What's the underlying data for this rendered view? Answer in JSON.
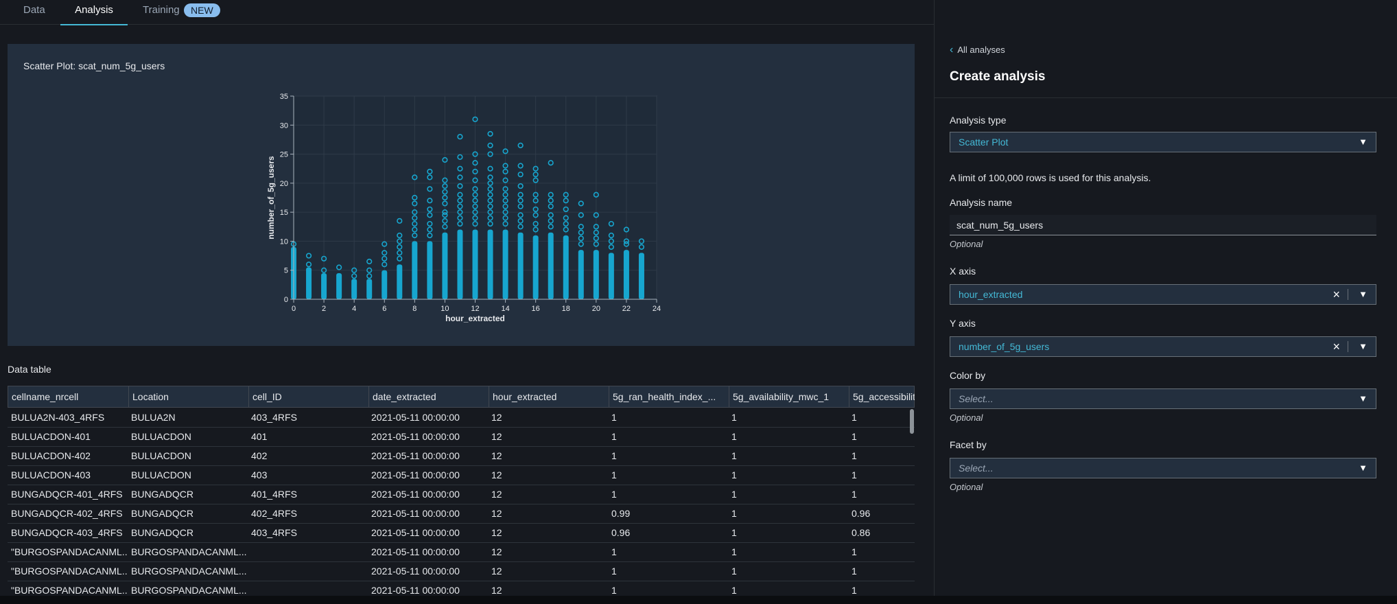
{
  "tabs": [
    {
      "label": "Data"
    },
    {
      "label": "Analysis"
    },
    {
      "label": "Training",
      "badge": "NEW"
    }
  ],
  "chart": {
    "title": "Scatter Plot: scat_num_5g_users"
  },
  "chart_data": {
    "type": "scatter",
    "xlabel": "hour_extracted",
    "ylabel": "number_of_5g_users",
    "xlim": [
      0,
      24
    ],
    "ylim": [
      0,
      35
    ],
    "xticks": [
      0,
      2,
      4,
      6,
      8,
      10,
      12,
      14,
      16,
      18,
      20,
      22,
      24
    ],
    "yticks": [
      0,
      5,
      10,
      15,
      20,
      25,
      30,
      35
    ],
    "grid": true,
    "color": "#17a6cf",
    "points_by_hour": [
      {
        "x": 0,
        "max": 9,
        "outliers": [
          8,
          9.5
        ]
      },
      {
        "x": 1,
        "max": 5.5,
        "outliers": [
          6,
          7.5
        ]
      },
      {
        "x": 2,
        "max": 4.5,
        "outliers": [
          5,
          7
        ]
      },
      {
        "x": 3,
        "max": 4.5,
        "outliers": [
          5.5
        ]
      },
      {
        "x": 4,
        "max": 3.5,
        "outliers": [
          4,
          5
        ]
      },
      {
        "x": 5,
        "max": 3.5,
        "outliers": [
          4,
          5,
          6.5
        ]
      },
      {
        "x": 6,
        "max": 5,
        "outliers": [
          6,
          7,
          8,
          9.5
        ]
      },
      {
        "x": 7,
        "max": 6,
        "outliers": [
          7,
          8,
          9,
          10,
          11,
          13.5
        ]
      },
      {
        "x": 8,
        "max": 10,
        "outliers": [
          11,
          12,
          13,
          14,
          15,
          16.5,
          17.5,
          21
        ]
      },
      {
        "x": 9,
        "max": 10,
        "outliers": [
          11,
          12,
          13,
          14.5,
          15.5,
          17,
          19,
          21,
          22
        ]
      },
      {
        "x": 10,
        "max": 11.5,
        "outliers": [
          12.5,
          13.5,
          14.5,
          15,
          16.5,
          17.5,
          18.5,
          19.5,
          20.5,
          24
        ]
      },
      {
        "x": 11,
        "max": 12,
        "outliers": [
          13,
          14,
          15,
          16,
          17,
          18,
          19.5,
          21,
          22.5,
          24.5,
          28
        ]
      },
      {
        "x": 12,
        "max": 12,
        "outliers": [
          13,
          14,
          15,
          16,
          17,
          18,
          19,
          20.5,
          22,
          23.5,
          25,
          31
        ]
      },
      {
        "x": 13,
        "max": 12,
        "outliers": [
          13,
          14,
          15,
          16,
          17,
          18,
          19,
          20,
          21,
          22.5,
          25,
          26.5,
          28.5
        ]
      },
      {
        "x": 14,
        "max": 12,
        "outliers": [
          13,
          14,
          15,
          16,
          17,
          18,
          19,
          20.5,
          22,
          23,
          25.5
        ]
      },
      {
        "x": 15,
        "max": 11.5,
        "outliers": [
          12.5,
          13.5,
          14.5,
          16,
          17,
          18,
          19.5,
          21.5,
          23,
          26.5
        ]
      },
      {
        "x": 16,
        "max": 11,
        "outliers": [
          12,
          13,
          14.5,
          15.5,
          17,
          18,
          20.5,
          21.5,
          22.5
        ]
      },
      {
        "x": 17,
        "max": 11.5,
        "outliers": [
          12.5,
          13.5,
          14.5,
          16,
          17,
          18,
          23.5
        ]
      },
      {
        "x": 18,
        "max": 11,
        "outliers": [
          12,
          13,
          14,
          15.5,
          17,
          18
        ]
      },
      {
        "x": 19,
        "max": 8.5,
        "outliers": [
          9.5,
          10.5,
          11.5,
          12.5,
          14.5,
          16.5
        ]
      },
      {
        "x": 20,
        "max": 8.5,
        "outliers": [
          9.5,
          10.5,
          11.5,
          12.5,
          14.5,
          18
        ]
      },
      {
        "x": 21,
        "max": 8,
        "outliers": [
          9,
          10,
          11,
          13
        ]
      },
      {
        "x": 22,
        "max": 8.5,
        "outliers": [
          9.5,
          10,
          12
        ]
      },
      {
        "x": 23,
        "max": 8,
        "outliers": [
          9,
          10
        ]
      }
    ]
  },
  "data_table": {
    "title": "Data table",
    "columns": [
      "cellname_nrcell",
      "Location",
      "cell_ID",
      "date_extracted",
      "hour_extracted",
      "5g_ran_health_index_...",
      "5g_availability_mwc_1",
      "5g_accessibilit"
    ],
    "rows": [
      [
        "BULUA2N-403_4RFS",
        "BULUA2N",
        "403_4RFS",
        "2021-05-11 00:00:00",
        "12",
        "1",
        "1",
        "1"
      ],
      [
        "BULUACDON-401",
        "BULUACDON",
        "401",
        "2021-05-11 00:00:00",
        "12",
        "1",
        "1",
        "1"
      ],
      [
        "BULUACDON-402",
        "BULUACDON",
        "402",
        "2021-05-11 00:00:00",
        "12",
        "1",
        "1",
        "1"
      ],
      [
        "BULUACDON-403",
        "BULUACDON",
        "403",
        "2021-05-11 00:00:00",
        "12",
        "1",
        "1",
        "1"
      ],
      [
        "BUNGADQCR-401_4RFS",
        "BUNGADQCR",
        "401_4RFS",
        "2021-05-11 00:00:00",
        "12",
        "1",
        "1",
        "1"
      ],
      [
        "BUNGADQCR-402_4RFS",
        "BUNGADQCR",
        "402_4RFS",
        "2021-05-11 00:00:00",
        "12",
        "0.99",
        "1",
        "0.96"
      ],
      [
        "BUNGADQCR-403_4RFS",
        "BUNGADQCR",
        "403_4RFS",
        "2021-05-11 00:00:00",
        "12",
        "0.96",
        "1",
        "0.86"
      ],
      [
        "\"BURGOSPANDACANML...",
        "BURGOSPANDACANML...",
        "",
        "2021-05-11 00:00:00",
        "12",
        "1",
        "1",
        "1"
      ],
      [
        "\"BURGOSPANDACANML...",
        "BURGOSPANDACANML...",
        "",
        "2021-05-11 00:00:00",
        "12",
        "1",
        "1",
        "1"
      ],
      [
        "\"BURGOSPANDACANML...",
        "BURGOSPANDACANML...",
        "",
        "2021-05-11 00:00:00",
        "12",
        "1",
        "1",
        "1"
      ]
    ]
  },
  "panel": {
    "back_label": "All analyses",
    "title": "Create analysis",
    "analysis_type_label": "Analysis type",
    "analysis_type_value": "Scatter Plot",
    "limit_info": "A limit of 100,000 rows is used for this analysis.",
    "name_label": "Analysis name",
    "name_value": "scat_num_5g_users",
    "optional": "Optional",
    "x_axis_label": "X axis",
    "x_axis_value": "hour_extracted",
    "y_axis_label": "Y axis",
    "y_axis_value": "number_of_5g_users",
    "color_label": "Color by",
    "color_placeholder": "Select...",
    "facet_label": "Facet by",
    "facet_placeholder": "Select..."
  },
  "icons": {
    "back": "chevron-left-icon",
    "dropdown": "caret-down-icon",
    "clear": "close-icon"
  }
}
